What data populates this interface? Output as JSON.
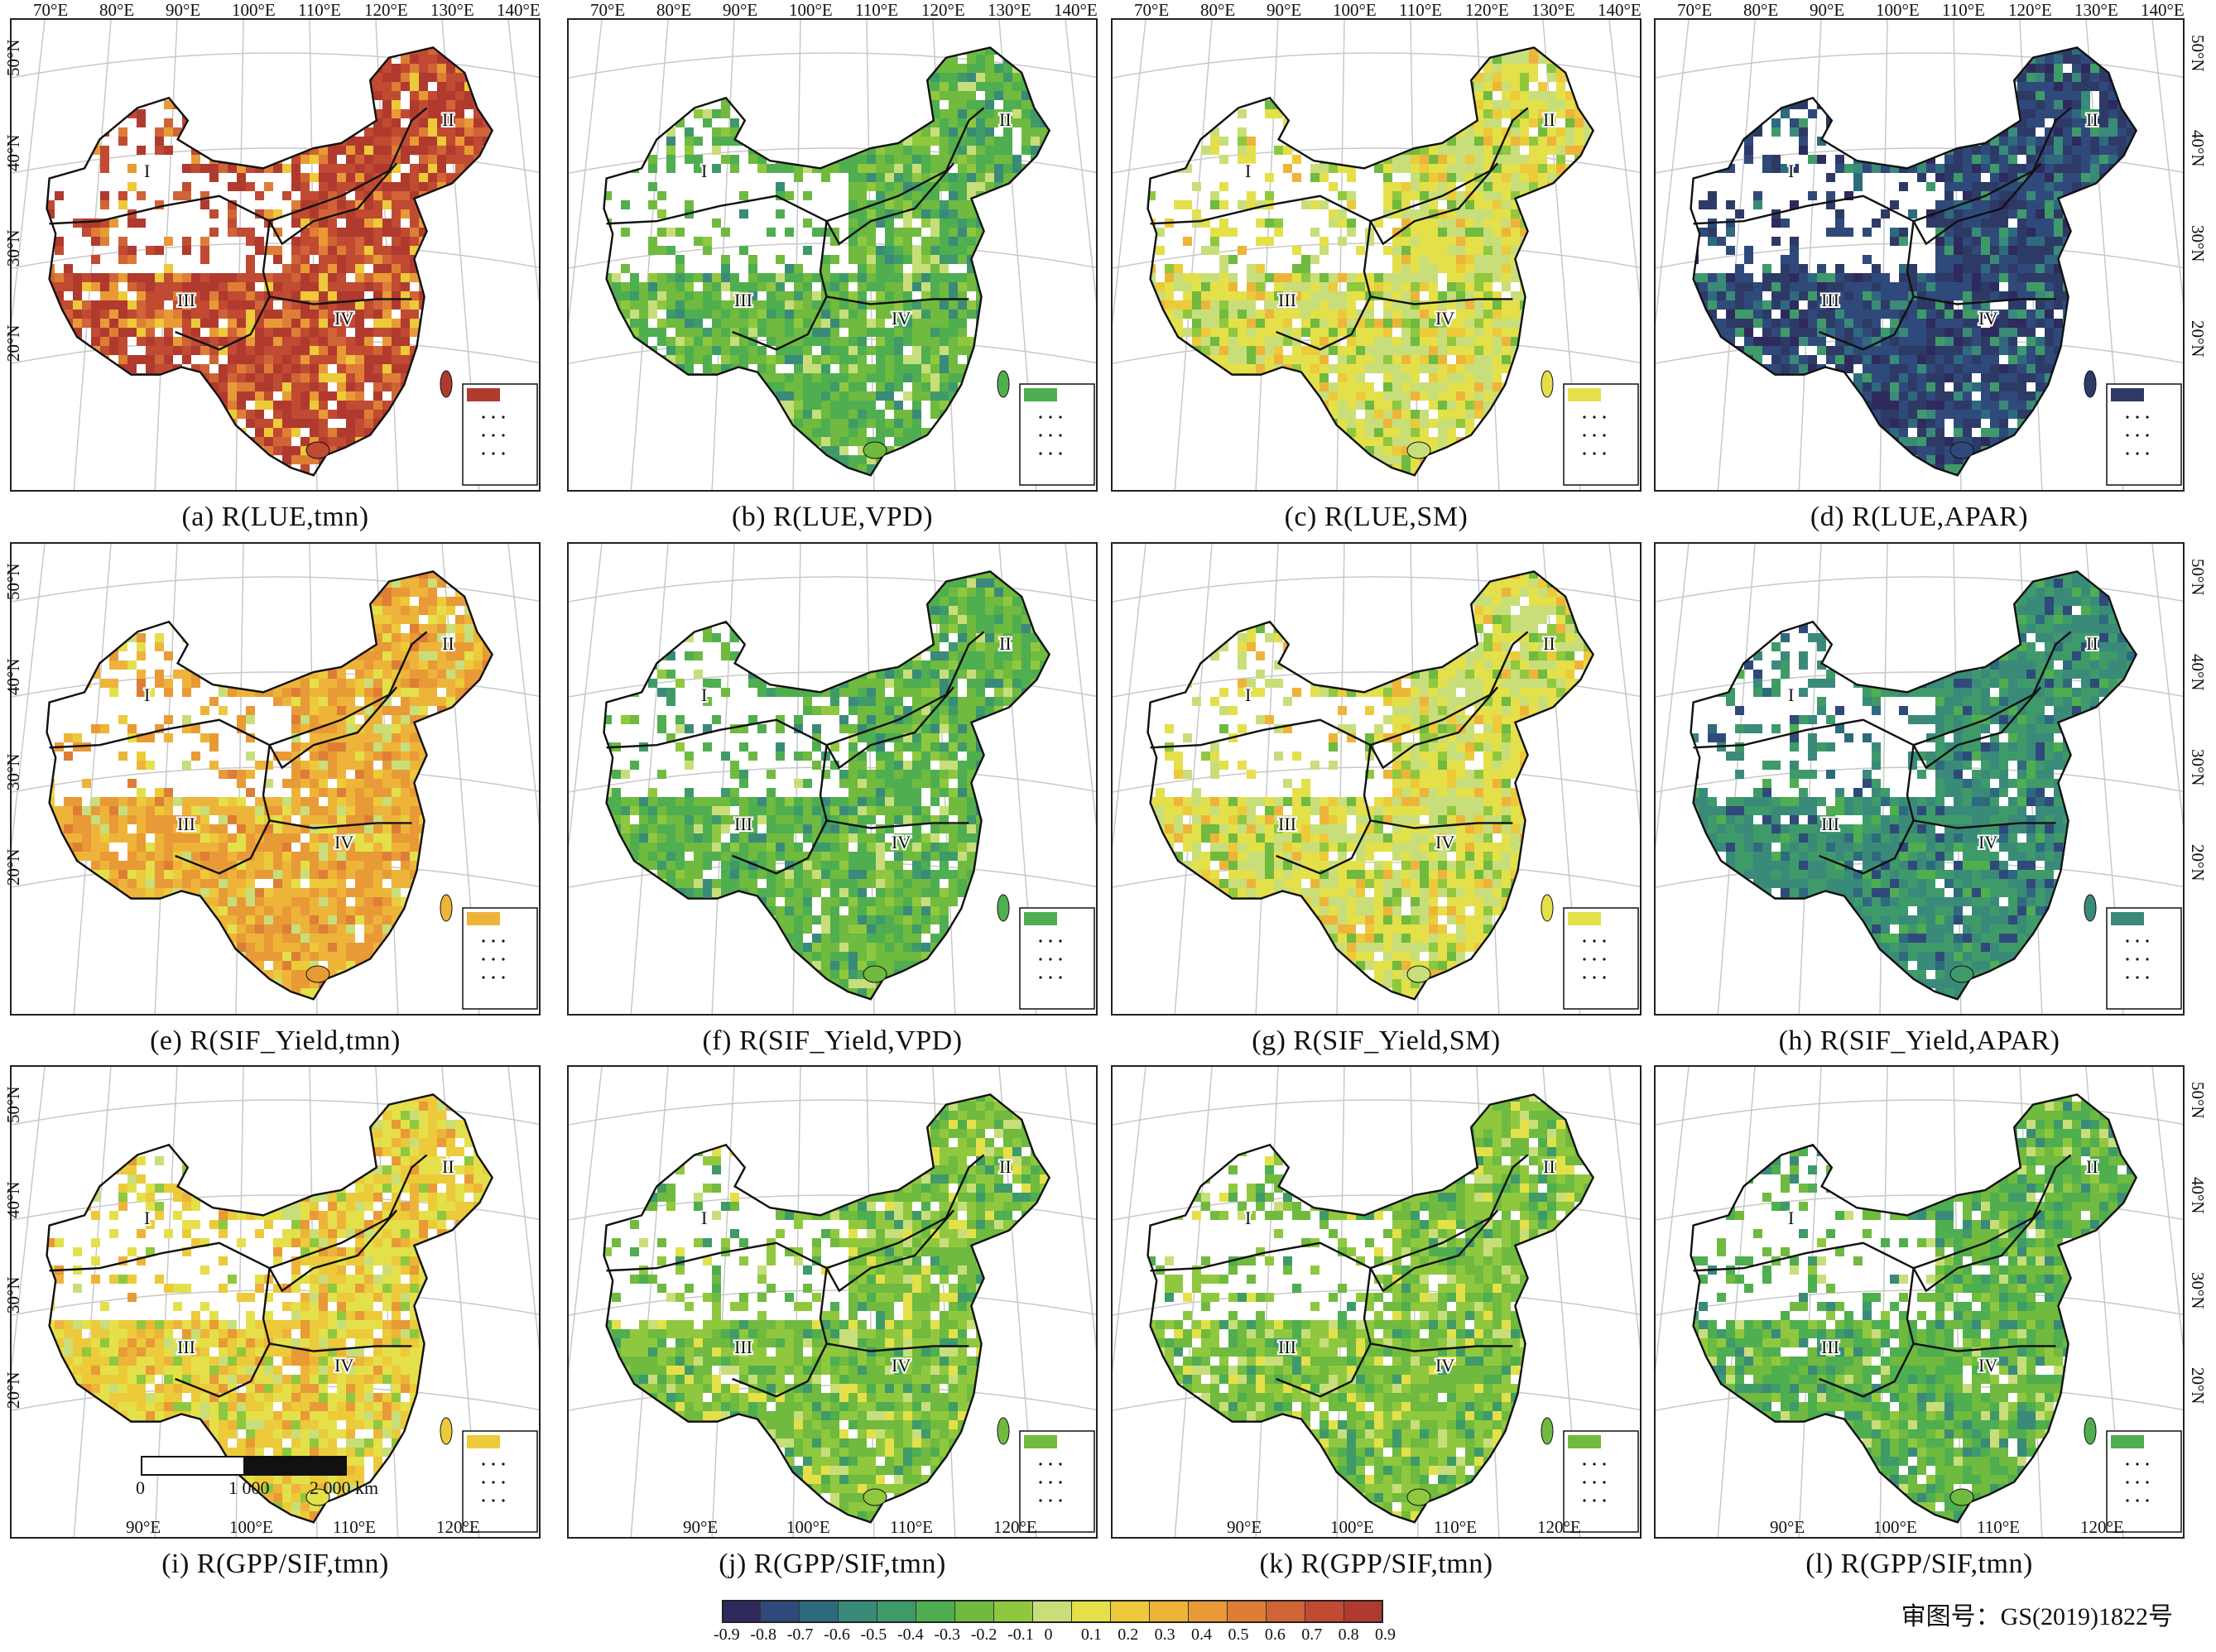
{
  "axis": {
    "lon_top": [
      "70°E",
      "80°E",
      "90°E",
      "100°E",
      "110°E",
      "120°E",
      "130°E",
      "140°E"
    ],
    "lon_bottom": [
      "90°E",
      "100°E",
      "110°E",
      "120°E"
    ],
    "lat_left": [
      "50°N",
      "40°N",
      "30°N",
      "20°N"
    ],
    "lat_right": [
      "50°N",
      "40°N",
      "30°N",
      "20°N"
    ]
  },
  "regions": [
    "I",
    "II",
    "III",
    "IV"
  ],
  "panels": [
    {
      "id": "a",
      "caption": "(a) R(LUE,tmn)",
      "palette": "warm"
    },
    {
      "id": "b",
      "caption": "(b) R(LUE,VPD)",
      "palette": "green-blue"
    },
    {
      "id": "c",
      "caption": "(c) R(LUE,SM)",
      "palette": "yellow-green"
    },
    {
      "id": "d",
      "caption": "(d) R(LUE,APAR)",
      "palette": "dark-blue"
    },
    {
      "id": "e",
      "caption": "(e) R(SIF_Yield,tmn)",
      "palette": "orange-yellow"
    },
    {
      "id": "f",
      "caption": "(f) R(SIF_Yield,VPD)",
      "palette": "green"
    },
    {
      "id": "g",
      "caption": "(g) R(SIF_Yield,SM)",
      "palette": "yellow-green"
    },
    {
      "id": "h",
      "caption": "(h) R(SIF_Yield,APAR)",
      "palette": "teal"
    },
    {
      "id": "i",
      "caption": "(i) R(GPP/SIF,tmn)",
      "palette": "yellow-orange"
    },
    {
      "id": "j",
      "caption": "(j) R(GPP/SIF,tmn)",
      "palette": "green-yellow"
    },
    {
      "id": "k",
      "caption": "(k) R(GPP/SIF,tmn)",
      "palette": "green-yellow"
    },
    {
      "id": "l",
      "caption": "(l) R(GPP/SIF,tmn)",
      "palette": "green"
    }
  ],
  "scale_bar": {
    "labels": [
      "0",
      "1 000",
      "2 000 km"
    ]
  },
  "legend": {
    "colors": [
      "#2e2a5e",
      "#2f4a7a",
      "#2e6a7e",
      "#3a8a7a",
      "#3f9a6a",
      "#4fae4f",
      "#6fba3f",
      "#8fc83f",
      "#c8de7a",
      "#e4e04a",
      "#ecca3a",
      "#eeb43a",
      "#e89a36",
      "#de7e36",
      "#d06436",
      "#c04a32",
      "#b03a2e"
    ],
    "labels": [
      "-0.9",
      "-0.8",
      "-0.7",
      "-0.6",
      "-0.5",
      "-0.4",
      "-0.3",
      "-0.2",
      "-0.1",
      "0",
      "0.1",
      "0.2",
      "0.3",
      "0.4",
      "0.5",
      "0.6",
      "0.7",
      "0.8",
      "0.9"
    ]
  },
  "review_number": "审图号：GS(2019)1822号"
}
